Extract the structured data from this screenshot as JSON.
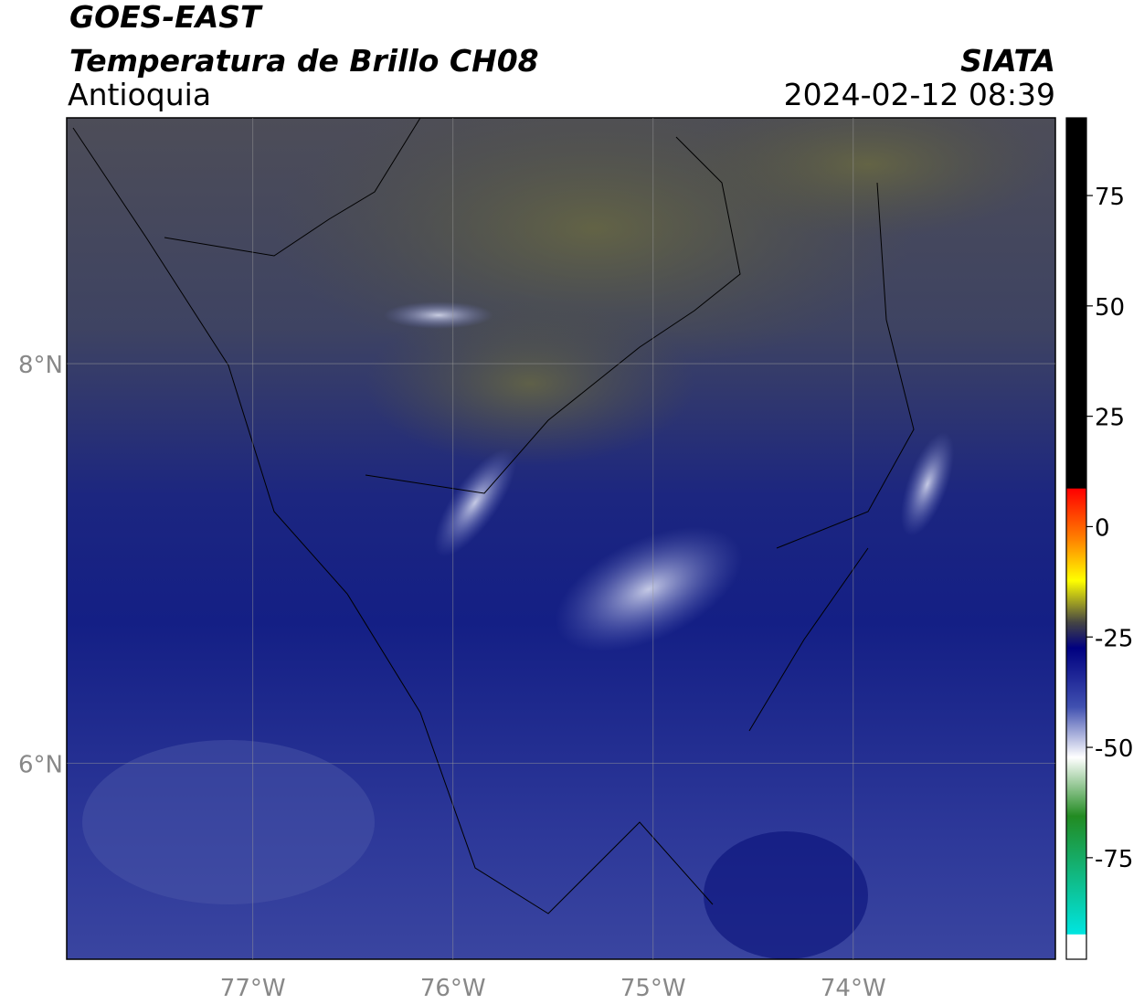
{
  "header": {
    "source": "GOES-EAST",
    "title": "Temperatura de Brillo CH08",
    "region": "Antioquia",
    "agency": "SIATA",
    "datetime": "2024-02-12 08:39"
  },
  "map": {
    "xlim": [
      -77.93,
      -72.99
    ],
    "ylim": [
      5.02,
      9.23
    ],
    "xticks": [
      {
        "value": -77,
        "label": "77°W"
      },
      {
        "value": -76,
        "label": "76°W"
      },
      {
        "value": -75,
        "label": "75°W"
      },
      {
        "value": -74,
        "label": "74°W"
      }
    ],
    "yticks": [
      {
        "value": 8,
        "label": "8°N"
      },
      {
        "value": 6,
        "label": "6°N"
      }
    ]
  },
  "colorbar": {
    "lim": [
      -98,
      92.6
    ],
    "ticks": [
      75,
      50,
      25,
      0,
      -25,
      -50,
      -75
    ]
  }
}
